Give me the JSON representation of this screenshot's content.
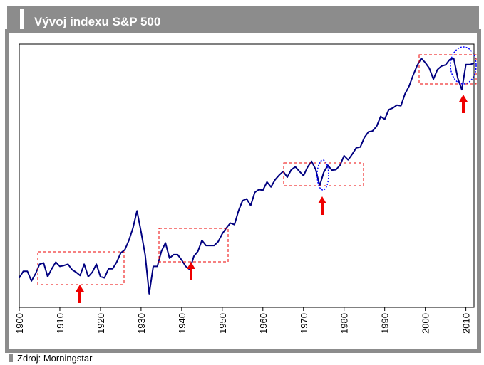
{
  "chart_data": {
    "type": "line",
    "title": "Vývoj indexu S&P 500",
    "source": "Zdroj: Morningstar",
    "x": [
      1900,
      1901,
      1902,
      1903,
      1904,
      1905,
      1906,
      1907,
      1908,
      1909,
      1910,
      1911,
      1912,
      1913,
      1914,
      1915,
      1916,
      1917,
      1918,
      1919,
      1920,
      1921,
      1922,
      1923,
      1924,
      1925,
      1926,
      1927,
      1928,
      1929,
      1930,
      1931,
      1932,
      1933,
      1934,
      1935,
      1936,
      1937,
      1938,
      1939,
      1940,
      1941,
      1942,
      1943,
      1944,
      1945,
      1946,
      1947,
      1948,
      1949,
      1950,
      1951,
      1952,
      1953,
      1954,
      1955,
      1956,
      1957,
      1958,
      1959,
      1960,
      1961,
      1962,
      1963,
      1964,
      1965,
      1966,
      1967,
      1968,
      1969,
      1970,
      1971,
      1972,
      1973,
      1974,
      1975,
      1976,
      1977,
      1978,
      1979,
      1980,
      1981,
      1982,
      1983,
      1984,
      1985,
      1986,
      1987,
      1988,
      1989,
      1990,
      1991,
      1992,
      1993,
      1994,
      1995,
      1996,
      1997,
      1998,
      1999,
      2000,
      2001,
      2002,
      2003,
      2004,
      2005,
      2006,
      2007,
      2008,
      2009,
      2010,
      2011,
      2012
    ],
    "values": [
      6.8,
      8,
      8,
      6.3,
      7.5,
      9.5,
      9.8,
      7,
      8.5,
      10,
      9,
      9.2,
      9.5,
      8.3,
      7.8,
      7.2,
      9.5,
      7,
      7.8,
      9.5,
      7,
      6.8,
      8.5,
      8.5,
      10,
      12.5,
      13.5,
      17,
      23,
      35,
      21,
      12,
      4.6,
      9,
      9,
      13,
      16,
      11,
      12,
      12,
      10.5,
      9,
      8.3,
      11.5,
      13,
      17,
      15,
      15,
      15,
      16.5,
      20,
      23,
      26,
      25,
      35,
      45,
      47,
      40,
      55,
      59,
      58,
      71,
      63,
      75,
      84,
      92,
      80,
      96,
      103,
      92,
      83,
      102,
      118,
      97,
      65,
      90,
      107,
      95,
      96,
      107,
      135,
      122,
      140,
      164,
      167,
      211,
      242,
      247,
      277,
      353,
      330,
      417,
      435,
      466,
      459,
      615,
      740,
      970,
      1229,
      1469,
      1320,
      1148,
      880,
      1112,
      1212,
      1248,
      1418,
      1468,
      903,
      680,
      1257,
      1258,
      1300
    ],
    "color": "#000080",
    "ylog": true,
    "ylim": [
      3.3,
      2077
    ],
    "xlim": [
      1900,
      2012
    ],
    "xticks": [
      1900,
      1910,
      1920,
      1930,
      1940,
      1950,
      1960,
      1970,
      1980,
      1990,
      2000,
      2010
    ]
  }
}
